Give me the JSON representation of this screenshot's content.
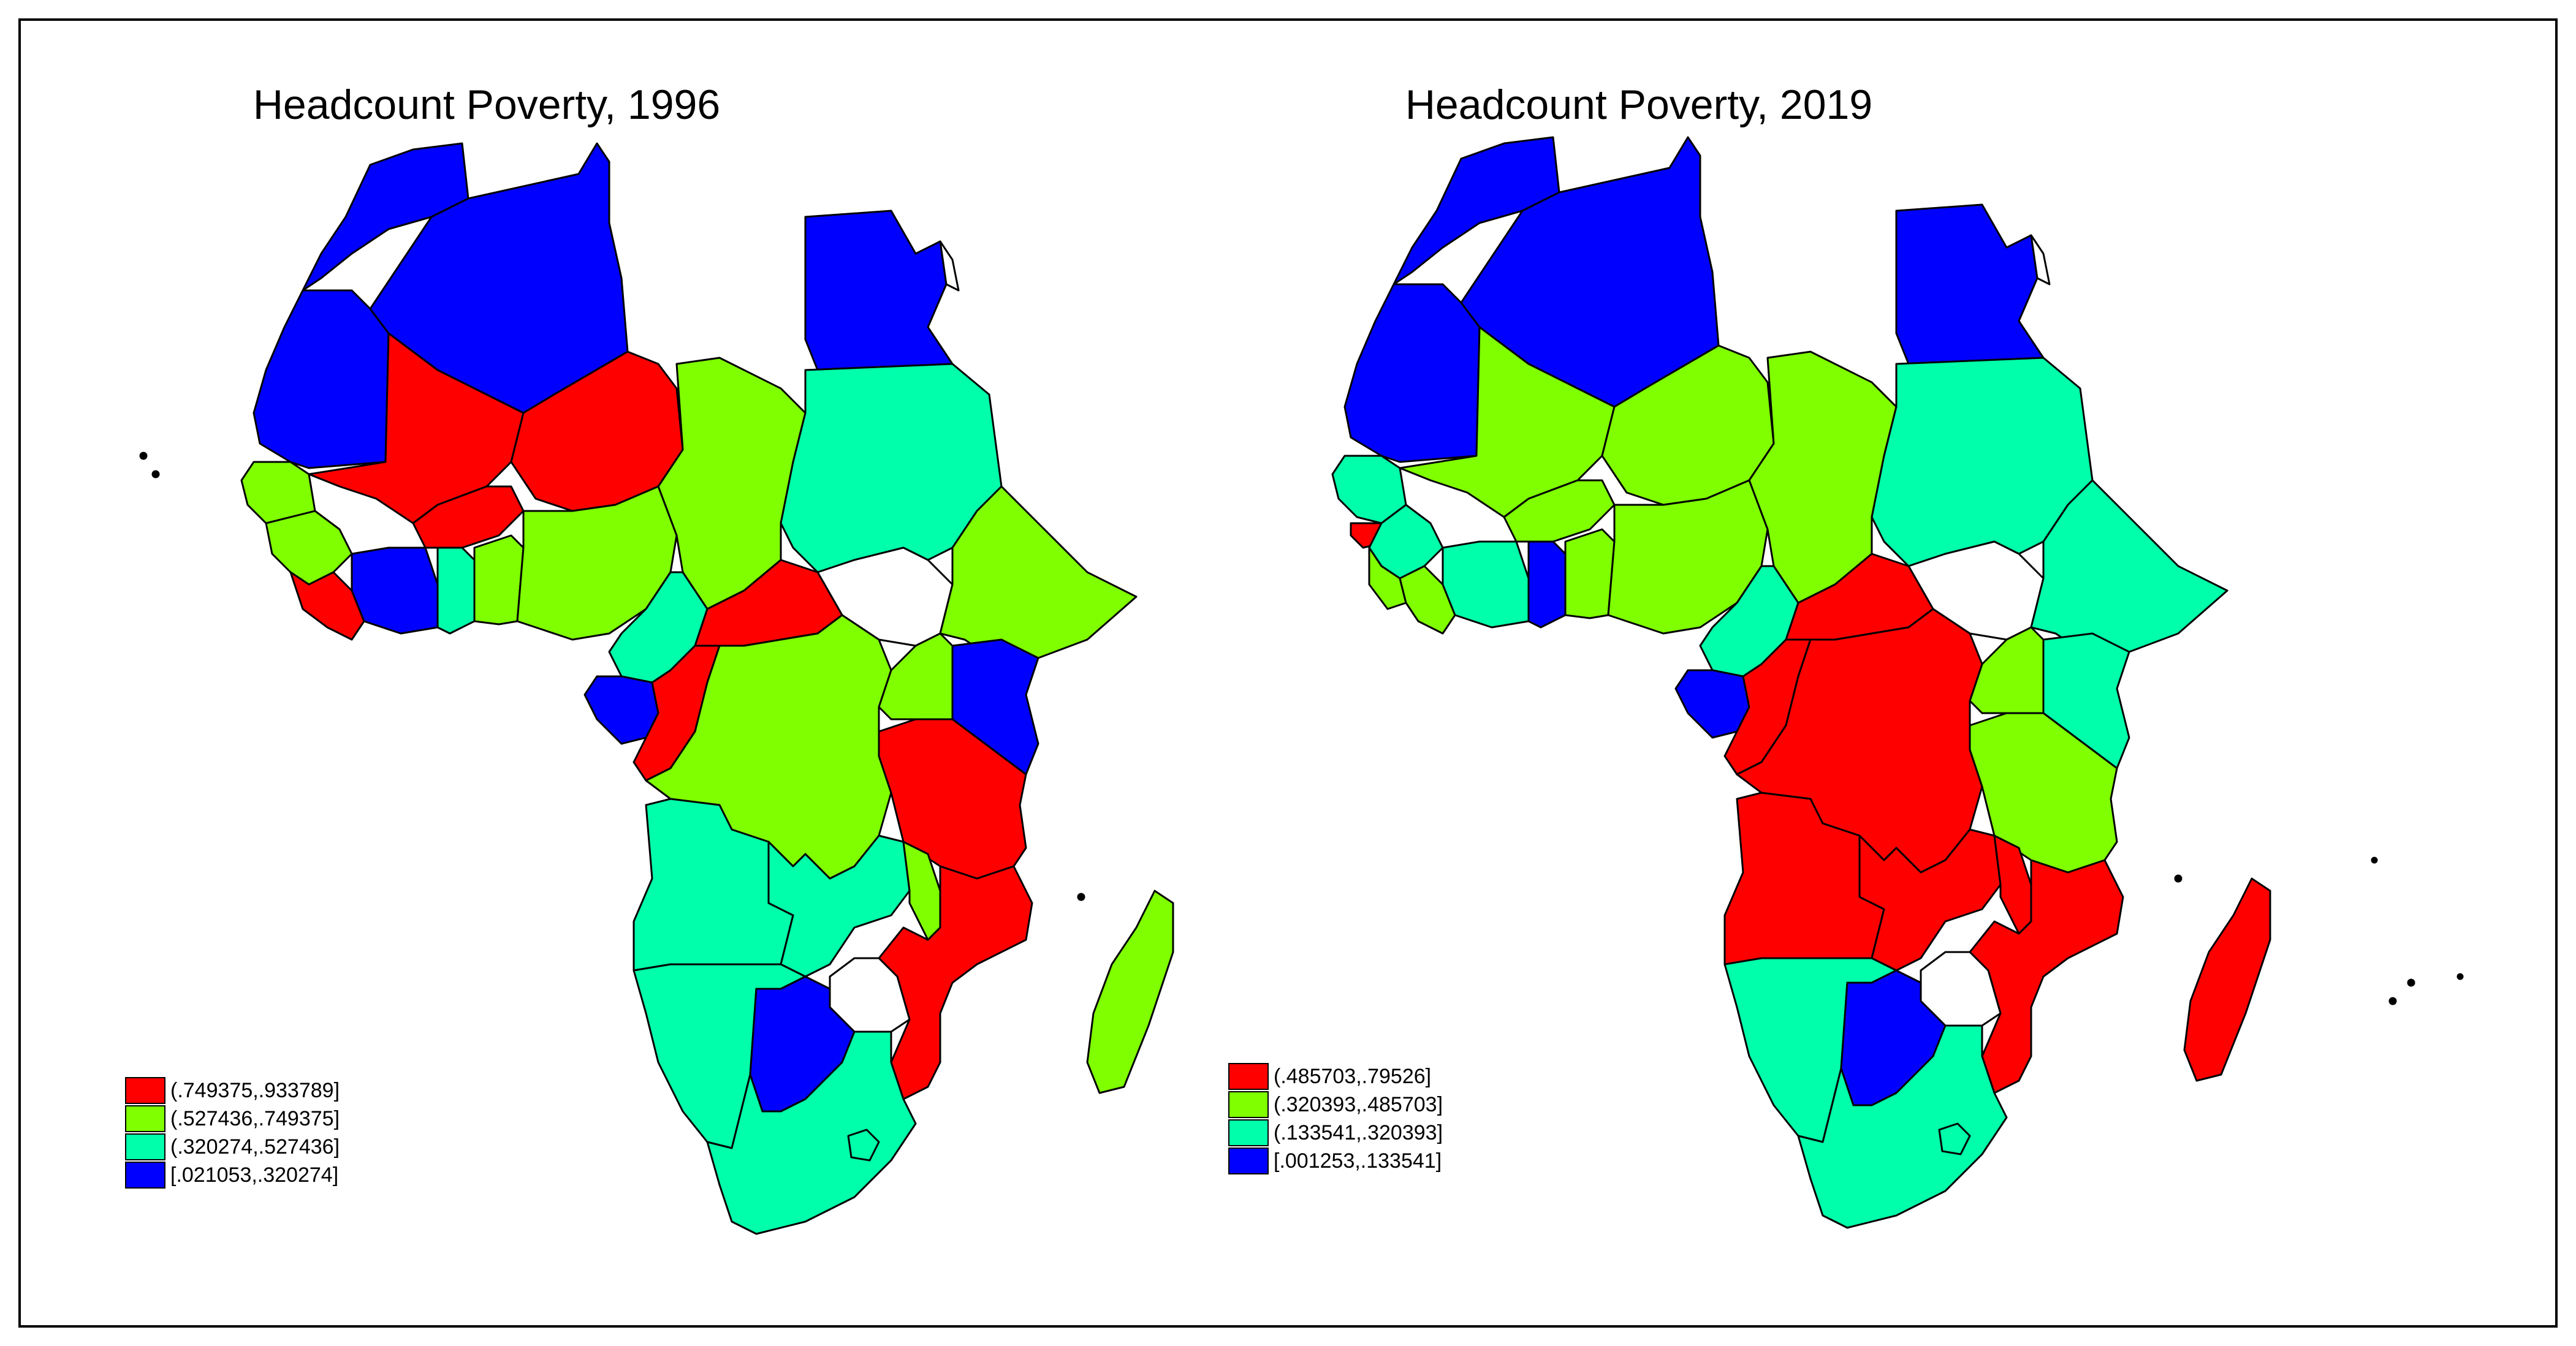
{
  "maps": [
    {
      "title": "Headcount Poverty, 1996",
      "legend": [
        {
          "label": "(.749375,.933789]",
          "color": "#ff0000"
        },
        {
          "label": "(.527436,.749375]",
          "color": "#7fff00"
        },
        {
          "label": "(.320274,.527436]",
          "color": "#00ffaa"
        },
        {
          "label": "[.021053,.320274]",
          "color": "#0000ff"
        }
      ]
    },
    {
      "title": "Headcount Poverty, 2019",
      "legend": [
        {
          "label": "(.485703,.79526]",
          "color": "#ff0000"
        },
        {
          "label": "(.320393,.485703]",
          "color": "#7fff00"
        },
        {
          "label": "(.133541,.320393]",
          "color": "#00ffaa"
        },
        {
          "label": "[.001253,.133541]",
          "color": "#0000ff"
        }
      ]
    }
  ]
}
